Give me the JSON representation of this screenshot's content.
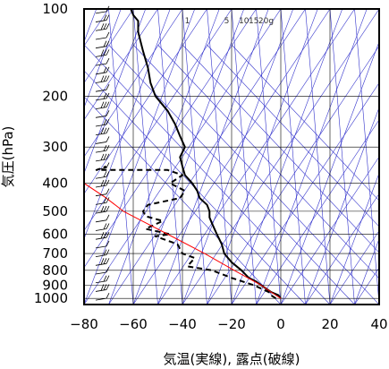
{
  "chart_data": {
    "type": "line",
    "title": "",
    "xlabel": "気温(実線), 露点(破線)",
    "ylabel": "気圧(hPa)",
    "xlim": [
      -80,
      40
    ],
    "ylim": [
      1050,
      100
    ],
    "yscale": "log",
    "grid": true,
    "x_ticks": [
      -80,
      -60,
      -40,
      -20,
      0,
      20,
      40
    ],
    "x_tick_labels": [
      "−80",
      "−60",
      "−40",
      "−20",
      "0",
      "20",
      "40"
    ],
    "y_ticks": [
      100,
      200,
      300,
      400,
      500,
      600,
      700,
      800,
      900,
      1000
    ],
    "y_tick_labels": [
      "100",
      "200",
      "300",
      "400",
      "500",
      "600",
      "700",
      "800",
      "900",
      "1000"
    ],
    "mixing_ratio_labels": [
      "1",
      "5",
      "10",
      "15",
      "20g"
    ],
    "colors": {
      "temperature": "#000000",
      "dewpoint": "#000000",
      "parcel": "#ff0000",
      "isolines": "#3333cc",
      "grid": "#000000"
    },
    "series": [
      {
        "points": [
          [
            0,
            1000
          ],
          [
            -1,
            975
          ],
          [
            -4,
            950
          ],
          [
            -6,
            925
          ],
          [
            -8,
            900
          ],
          [
            -10,
            875
          ],
          [
            -13,
            850
          ],
          [
            -16,
            800
          ],
          [
            -20,
            750
          ],
          [
            -23,
            700
          ],
          [
            -24,
            650
          ],
          [
            -26,
            600
          ],
          [
            -28,
            550
          ],
          [
            -29,
            525
          ],
          [
            -29,
            500
          ],
          [
            -30,
            475
          ],
          [
            -33,
            450
          ],
          [
            -34,
            425
          ],
          [
            -36,
            400
          ],
          [
            -39,
            375
          ],
          [
            -40,
            350
          ],
          [
            -41,
            325
          ],
          [
            -39,
            300
          ],
          [
            -41,
            275
          ],
          [
            -43,
            250
          ],
          [
            -46,
            225
          ],
          [
            -51,
            200
          ],
          [
            -53,
            180
          ],
          [
            -54,
            160
          ],
          [
            -56,
            140
          ],
          [
            -57,
            130
          ],
          [
            -58,
            120
          ],
          [
            -58,
            110
          ],
          [
            -60,
            105
          ],
          [
            -61,
            100
          ]
        ]
      },
      {
        "points": [
          [
            -2,
            1000
          ],
          [
            -4,
            975
          ],
          [
            -5,
            950
          ],
          [
            -8,
            925
          ],
          [
            -11,
            900
          ],
          [
            -20,
            850
          ],
          [
            -28,
            800
          ],
          [
            -38,
            775
          ],
          [
            -35,
            725
          ],
          [
            -40,
            700
          ],
          [
            -42,
            650
          ],
          [
            -51,
            610
          ],
          [
            -45,
            600
          ],
          [
            -55,
            575
          ],
          [
            -48,
            540
          ],
          [
            -55,
            520
          ],
          [
            -56,
            500
          ],
          [
            -54,
            475
          ],
          [
            -41,
            450
          ],
          [
            -39,
            425
          ],
          [
            -45,
            400
          ],
          [
            -40,
            375
          ],
          [
            -46,
            360
          ],
          [
            -75,
            360
          ],
          [
            -71,
            350
          ]
        ]
      },
      {
        "points": [
          [
            0,
            1000
          ],
          [
            -4,
            950
          ],
          [
            -8,
            900
          ],
          [
            -19,
            800
          ],
          [
            -31,
            700
          ],
          [
            -46,
            600
          ],
          [
            -64,
            500
          ],
          [
            -71,
            450
          ],
          [
            -80,
            400
          ]
        ]
      }
    ],
    "wind_barbs": {
      "count": 34,
      "side": "left"
    }
  }
}
